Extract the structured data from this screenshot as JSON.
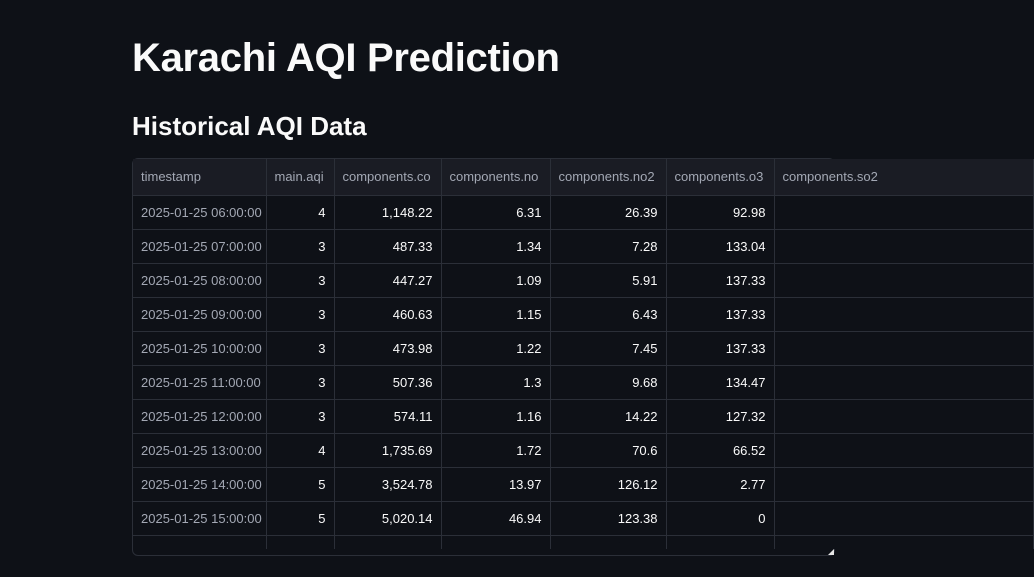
{
  "page": {
    "title": "Karachi AQI Prediction",
    "subtitle": "Historical AQI Data"
  },
  "table": {
    "columns": [
      "timestamp",
      "main.aqi",
      "components.co",
      "components.no",
      "components.no2",
      "components.o3",
      "components.so2"
    ],
    "rows": [
      [
        "2025-01-25 06:00:00",
        "4",
        "1,148.22",
        "6.31",
        "26.39",
        "92.98",
        ""
      ],
      [
        "2025-01-25 07:00:00",
        "3",
        "487.33",
        "1.34",
        "7.28",
        "133.04",
        ""
      ],
      [
        "2025-01-25 08:00:00",
        "3",
        "447.27",
        "1.09",
        "5.91",
        "137.33",
        ""
      ],
      [
        "2025-01-25 09:00:00",
        "3",
        "460.63",
        "1.15",
        "6.43",
        "137.33",
        ""
      ],
      [
        "2025-01-25 10:00:00",
        "3",
        "473.98",
        "1.22",
        "7.45",
        "137.33",
        ""
      ],
      [
        "2025-01-25 11:00:00",
        "3",
        "507.36",
        "1.3",
        "9.68",
        "134.47",
        ""
      ],
      [
        "2025-01-25 12:00:00",
        "3",
        "574.11",
        "1.16",
        "14.22",
        "127.32",
        ""
      ],
      [
        "2025-01-25 13:00:00",
        "4",
        "1,735.69",
        "1.72",
        "70.6",
        "66.52",
        ""
      ],
      [
        "2025-01-25 14:00:00",
        "5",
        "3,524.78",
        "13.97",
        "126.12",
        "2.77",
        ""
      ],
      [
        "2025-01-25 15:00:00",
        "5",
        "5,020.14",
        "46.94",
        "123.38",
        "0",
        ""
      ]
    ]
  },
  "colors": {
    "background": "#0e1117",
    "header_bg": "#1a1c24",
    "grid": "#2b2f38",
    "text": "#fafafa",
    "muted_text": "#a3a8b4"
  }
}
